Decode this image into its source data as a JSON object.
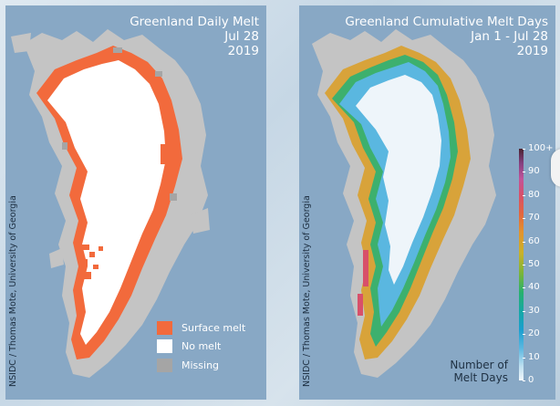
{
  "panels": [
    {
      "title_lines": [
        "Greenland Daily Melt",
        "Jul 28",
        "2019"
      ],
      "credit": "NSIDC / Thomas Mote, University of Georgia",
      "legend": [
        {
          "label": "Surface melt",
          "color": "#f26a3c"
        },
        {
          "label": "No melt",
          "color": "#ffffff"
        },
        {
          "label": "Missing",
          "color": "#a5a5a5"
        }
      ]
    },
    {
      "title_lines": [
        "Greenland Cumulative Melt Days",
        "Jan 1 - Jul 28",
        "2019"
      ],
      "credit": "NSIDC / Thomas Mote, University of Georgia",
      "colorbar": {
        "ticks": [
          "100+",
          "90",
          "80",
          "70",
          "60",
          "50",
          "40",
          "30",
          "20",
          "10",
          "0"
        ],
        "label_lines": [
          "Number of",
          "Melt Days"
        ]
      }
    }
  ],
  "colors": {
    "ocean": "#88a8c5",
    "land": "#c4c4c4",
    "melt": "#f26a3c",
    "no_melt": "#ffffff",
    "missing": "#a5a5a5"
  },
  "icons": [
    "colorbar"
  ]
}
